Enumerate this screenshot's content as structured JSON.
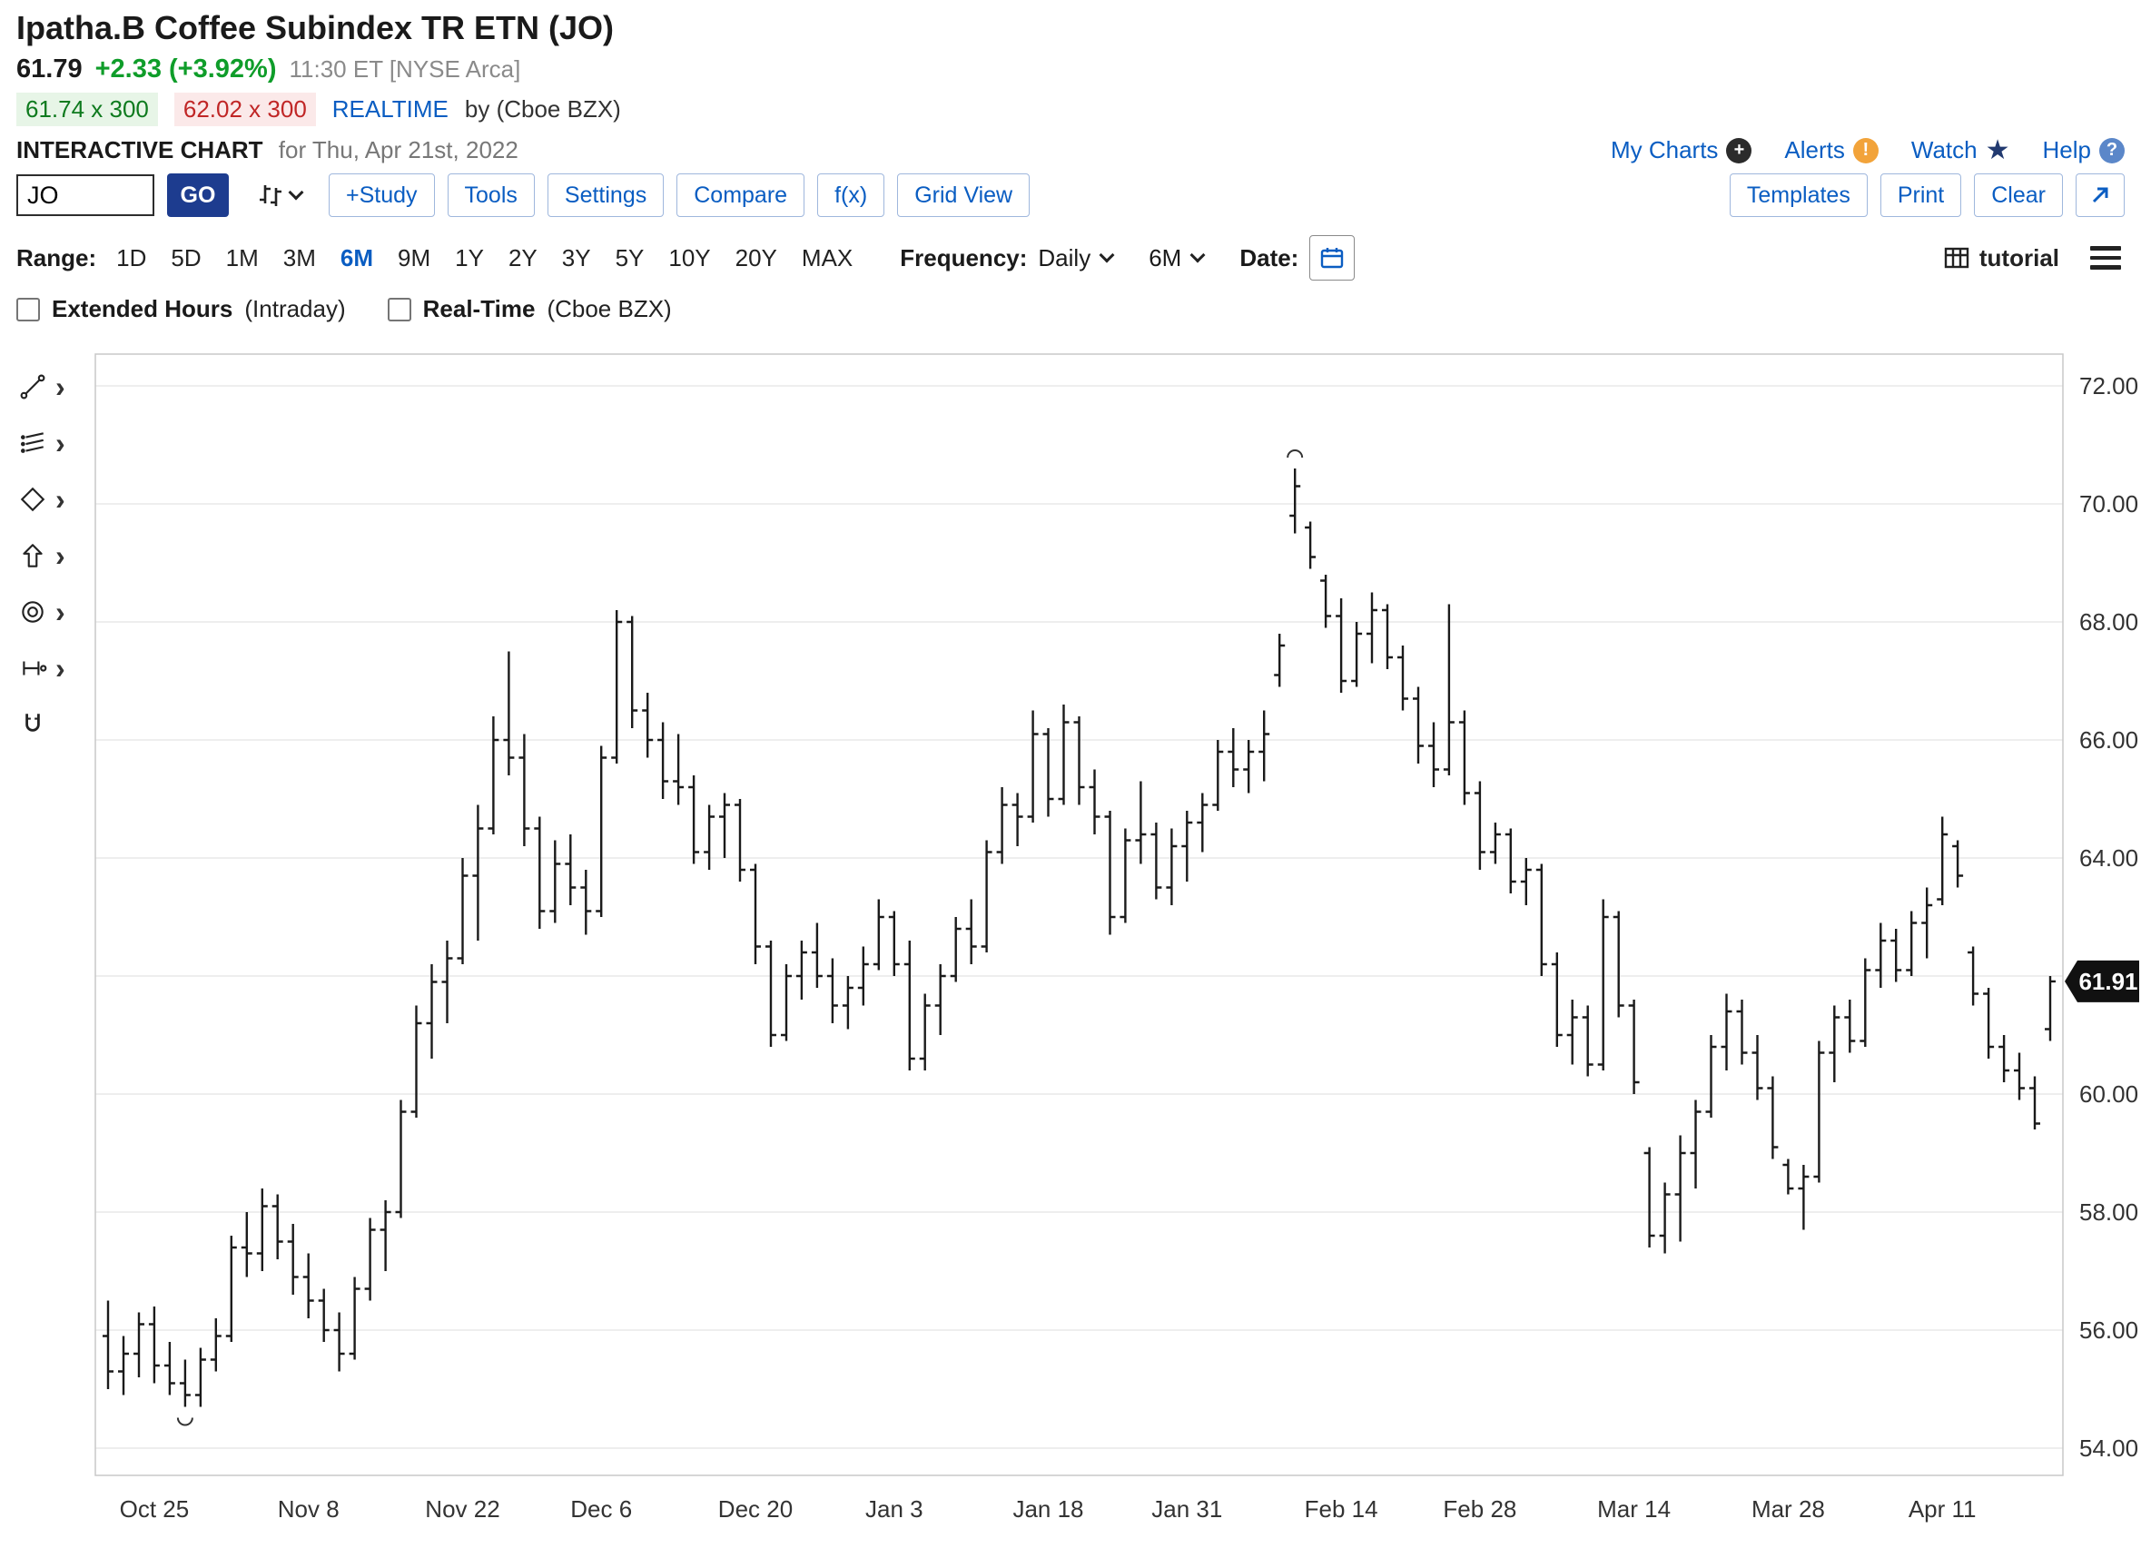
{
  "header": {
    "title": "Ipatha.B Coffee Subindex TR ETN (JO)",
    "price": "61.79",
    "change": "+2.33 (+3.92%)",
    "time": "11:30 ET [NYSE Arca]",
    "bid": "61.74 x 300",
    "ask": "62.02 x 300",
    "realtime_label": "REALTIME",
    "realtime_by": "by (Cboe BZX)",
    "chart_label": "INTERACTIVE CHART",
    "chart_date": "for Thu, Apr 21st, 2022",
    "links": {
      "my_charts": "My Charts",
      "alerts": "Alerts",
      "watch": "Watch",
      "help": "Help"
    }
  },
  "toolbar": {
    "symbol_value": "JO",
    "go_label": "GO",
    "buttons": [
      "+Study",
      "Tools",
      "Settings",
      "Compare",
      "f(x)",
      "Grid View"
    ],
    "right_buttons": [
      "Templates",
      "Print",
      "Clear"
    ]
  },
  "range_bar": {
    "range_label": "Range:",
    "ranges": [
      "1D",
      "5D",
      "1M",
      "3M",
      "6M",
      "9M",
      "1Y",
      "2Y",
      "3Y",
      "5Y",
      "10Y",
      "20Y",
      "MAX"
    ],
    "selected_range": "6M",
    "frequency_label": "Frequency:",
    "frequency_value": "Daily",
    "period_value": "6M",
    "date_label": "Date:",
    "tutorial_label": "tutorial"
  },
  "options": {
    "extended_hours": "Extended Hours",
    "extended_hours_suffix": "(Intraday)",
    "realtime": "Real-Time",
    "realtime_suffix": "(Cboe BZX)"
  },
  "icons": {
    "drawing_tools": [
      "line-tool",
      "multiline-tool",
      "polygon-tool",
      "arrow-tool",
      "ellipse-tool",
      "measure-tool",
      "magnet-tool"
    ]
  },
  "colors": {
    "accent_blue": "#0a5dc2",
    "positive_green": "#0f9d2a",
    "bid_green_bg": "#e7f5e7",
    "bid_green_text": "#0e7a1e",
    "ask_red_bg": "#fbe9e9",
    "ask_red_text": "#c02626",
    "go_button_bg": "#1d3c8f",
    "alert_orange": "#f2a33a",
    "price_tag_bg": "#111111",
    "bar_color": "#1a1a1a"
  },
  "chart_data": {
    "type": "ohlc-bar",
    "title": "Ipatha.B Coffee Subindex TR ETN (JO) Daily",
    "ylim": [
      54,
      72
    ],
    "y_ticks": [
      72,
      70,
      68,
      66,
      64,
      62,
      60,
      58,
      56,
      54
    ],
    "last_price": "61.91",
    "grid": true,
    "x_ticks": [
      {
        "label": "Oct 25",
        "i": 3
      },
      {
        "label": "Nov 8",
        "i": 13
      },
      {
        "label": "Nov 22",
        "i": 23
      },
      {
        "label": "Dec 6",
        "i": 32
      },
      {
        "label": "Dec 20",
        "i": 42
      },
      {
        "label": "Jan 3",
        "i": 51
      },
      {
        "label": "Jan 18",
        "i": 61
      },
      {
        "label": "Jan 31",
        "i": 70
      },
      {
        "label": "Feb 14",
        "i": 80
      },
      {
        "label": "Feb 28",
        "i": 89
      },
      {
        "label": "Mar 14",
        "i": 99
      },
      {
        "label": "Mar 28",
        "i": 109
      },
      {
        "label": "Apr 11",
        "i": 119
      }
    ],
    "annotations": [
      {
        "i": 5,
        "position": "below"
      },
      {
        "i": 77,
        "position": "above"
      }
    ],
    "bars": [
      [
        "Oct 20",
        55.9,
        56.5,
        55.0,
        55.3
      ],
      [
        "Oct 21",
        55.3,
        55.9,
        54.9,
        55.6
      ],
      [
        "Oct 22",
        55.6,
        56.3,
        55.2,
        56.1
      ],
      [
        "Oct 25",
        56.1,
        56.4,
        55.1,
        55.4
      ],
      [
        "Oct 26",
        55.4,
        55.8,
        54.9,
        55.1
      ],
      [
        "Oct 27",
        55.1,
        55.5,
        54.7,
        54.9
      ],
      [
        "Oct 28",
        54.9,
        55.7,
        54.7,
        55.5
      ],
      [
        "Oct 29",
        55.5,
        56.2,
        55.3,
        55.9
      ],
      [
        "Nov 1",
        55.9,
        57.6,
        55.8,
        57.4
      ],
      [
        "Nov 2",
        57.4,
        58.0,
        56.9,
        57.3
      ],
      [
        "Nov 3",
        57.3,
        58.4,
        57.0,
        58.1
      ],
      [
        "Nov 4",
        58.1,
        58.3,
        57.2,
        57.5
      ],
      [
        "Nov 5",
        57.5,
        57.8,
        56.6,
        56.9
      ],
      [
        "Nov 8",
        56.9,
        57.3,
        56.2,
        56.5
      ],
      [
        "Nov 9",
        56.5,
        56.7,
        55.8,
        56.0
      ],
      [
        "Nov 10",
        56.0,
        56.3,
        55.3,
        55.6
      ],
      [
        "Nov 11",
        55.6,
        56.9,
        55.5,
        56.7
      ],
      [
        "Nov 12",
        56.7,
        57.9,
        56.5,
        57.7
      ],
      [
        "Nov 15",
        57.7,
        58.2,
        57.0,
        58.0
      ],
      [
        "Nov 16",
        58.0,
        59.9,
        57.9,
        59.7
      ],
      [
        "Nov 17",
        59.7,
        61.5,
        59.6,
        61.2
      ],
      [
        "Nov 18",
        61.2,
        62.2,
        60.6,
        61.9
      ],
      [
        "Nov 19",
        61.9,
        62.6,
        61.2,
        62.3
      ],
      [
        "Nov 22",
        62.3,
        64.0,
        62.2,
        63.7
      ],
      [
        "Nov 23",
        63.7,
        64.9,
        62.6,
        64.5
      ],
      [
        "Nov 24",
        64.5,
        66.4,
        64.4,
        66.0
      ],
      [
        "Nov 26",
        66.0,
        67.5,
        65.4,
        65.7
      ],
      [
        "Nov 29",
        65.7,
        66.1,
        64.2,
        64.5
      ],
      [
        "Nov 30",
        64.5,
        64.7,
        62.8,
        63.1
      ],
      [
        "Dec 1",
        63.1,
        64.3,
        62.9,
        63.9
      ],
      [
        "Dec 2",
        63.9,
        64.4,
        63.2,
        63.5
      ],
      [
        "Dec 3",
        63.5,
        63.8,
        62.7,
        63.1
      ],
      [
        "Dec 6",
        63.1,
        65.9,
        63.0,
        65.7
      ],
      [
        "Dec 7",
        65.7,
        68.2,
        65.6,
        68.0
      ],
      [
        "Dec 8",
        68.0,
        68.1,
        66.2,
        66.5
      ],
      [
        "Dec 9",
        66.5,
        66.8,
        65.7,
        66.0
      ],
      [
        "Dec 10",
        66.0,
        66.3,
        65.0,
        65.3
      ],
      [
        "Dec 13",
        65.3,
        66.1,
        64.9,
        65.2
      ],
      [
        "Dec 14",
        65.2,
        65.4,
        63.9,
        64.1
      ],
      [
        "Dec 15",
        64.1,
        64.9,
        63.8,
        64.7
      ],
      [
        "Dec 16",
        64.7,
        65.1,
        64.0,
        64.9
      ],
      [
        "Dec 17",
        64.9,
        65.0,
        63.6,
        63.8
      ],
      [
        "Dec 20",
        63.8,
        63.9,
        62.2,
        62.5
      ],
      [
        "Dec 21",
        62.5,
        62.6,
        60.8,
        61.0
      ],
      [
        "Dec 22",
        61.0,
        62.2,
        60.9,
        62.0
      ],
      [
        "Dec 23",
        62.0,
        62.6,
        61.6,
        62.4
      ],
      [
        "Dec 27",
        62.4,
        62.9,
        61.8,
        62.0
      ],
      [
        "Dec 28",
        62.0,
        62.3,
        61.2,
        61.5
      ],
      [
        "Dec 29",
        61.5,
        62.0,
        61.1,
        61.8
      ],
      [
        "Dec 30",
        61.8,
        62.5,
        61.5,
        62.2
      ],
      [
        "Dec 31",
        62.2,
        63.3,
        62.1,
        63.0
      ],
      [
        "Jan 3",
        63.0,
        63.1,
        62.0,
        62.2
      ],
      [
        "Jan 4",
        62.2,
        62.6,
        60.4,
        60.6
      ],
      [
        "Jan 5",
        60.6,
        61.7,
        60.4,
        61.5
      ],
      [
        "Jan 6",
        61.5,
        62.2,
        61.0,
        62.0
      ],
      [
        "Jan 7",
        62.0,
        63.0,
        61.9,
        62.8
      ],
      [
        "Jan 10",
        62.8,
        63.3,
        62.2,
        62.5
      ],
      [
        "Jan 11",
        62.5,
        64.3,
        62.4,
        64.1
      ],
      [
        "Jan 12",
        64.1,
        65.2,
        63.9,
        64.9
      ],
      [
        "Jan 13",
        64.9,
        65.1,
        64.2,
        64.7
      ],
      [
        "Jan 14",
        64.7,
        66.5,
        64.6,
        66.1
      ],
      [
        "Jan 18",
        66.1,
        66.2,
        64.7,
        65.0
      ],
      [
        "Jan 19",
        65.0,
        66.6,
        64.9,
        66.3
      ],
      [
        "Jan 20",
        66.3,
        66.4,
        64.9,
        65.2
      ],
      [
        "Jan 21",
        65.2,
        65.5,
        64.4,
        64.7
      ],
      [
        "Jan 24",
        64.7,
        64.8,
        62.7,
        63.0
      ],
      [
        "Jan 25",
        63.0,
        64.5,
        62.9,
        64.3
      ],
      [
        "Jan 26",
        64.3,
        65.3,
        63.9,
        64.4
      ],
      [
        "Jan 27",
        64.4,
        64.6,
        63.3,
        63.5
      ],
      [
        "Jan 28",
        63.5,
        64.5,
        63.2,
        64.2
      ],
      [
        "Jan 31",
        64.2,
        64.8,
        63.6,
        64.6
      ],
      [
        "Feb 1",
        64.6,
        65.1,
        64.1,
        64.9
      ],
      [
        "Feb 2",
        64.9,
        66.0,
        64.8,
        65.8
      ],
      [
        "Feb 3",
        65.8,
        66.2,
        65.2,
        65.5
      ],
      [
        "Feb 4",
        65.5,
        66.0,
        65.1,
        65.8
      ],
      [
        "Feb 7",
        65.8,
        66.5,
        65.3,
        66.1
      ],
      [
        "Feb 8",
        67.1,
        67.8,
        66.9,
        67.6
      ],
      [
        "Feb 9",
        69.8,
        70.6,
        69.5,
        70.3
      ],
      [
        "Feb 10",
        69.6,
        69.7,
        68.9,
        69.1
      ],
      [
        "Feb 11",
        68.7,
        68.8,
        67.9,
        68.1
      ],
      [
        "Feb 14",
        68.1,
        68.4,
        66.8,
        67.0
      ],
      [
        "Feb 15",
        67.0,
        68.0,
        66.9,
        67.8
      ],
      [
        "Feb 16",
        67.8,
        68.5,
        67.3,
        68.2
      ],
      [
        "Feb 17",
        68.2,
        68.3,
        67.2,
        67.4
      ],
      [
        "Feb 18",
        67.4,
        67.6,
        66.5,
        66.7
      ],
      [
        "Feb 22",
        66.7,
        66.9,
        65.6,
        65.9
      ],
      [
        "Feb 23",
        65.9,
        66.3,
        65.2,
        65.5
      ],
      [
        "Feb 24",
        65.5,
        68.3,
        65.4,
        66.3
      ],
      [
        "Feb 25",
        66.3,
        66.5,
        64.9,
        65.1
      ],
      [
        "Feb 28",
        65.1,
        65.3,
        63.8,
        64.1
      ],
      [
        "Mar 1",
        64.1,
        64.6,
        63.9,
        64.4
      ],
      [
        "Mar 2",
        64.4,
        64.5,
        63.4,
        63.6
      ],
      [
        "Mar 3",
        63.6,
        64.0,
        63.2,
        63.8
      ],
      [
        "Mar 4",
        63.8,
        63.9,
        62.0,
        62.2
      ],
      [
        "Mar 7",
        62.2,
        62.4,
        60.8,
        61.0
      ],
      [
        "Mar 8",
        61.0,
        61.6,
        60.5,
        61.3
      ],
      [
        "Mar 9",
        61.3,
        61.5,
        60.3,
        60.5
      ],
      [
        "Mar 10",
        60.5,
        63.3,
        60.4,
        63.0
      ],
      [
        "Mar 11",
        63.0,
        63.1,
        61.3,
        61.5
      ],
      [
        "Mar 14",
        61.5,
        61.6,
        60.0,
        60.2
      ],
      [
        "Mar 15",
        59.0,
        59.1,
        57.4,
        57.6
      ],
      [
        "Mar 16",
        57.6,
        58.5,
        57.3,
        58.3
      ],
      [
        "Mar 17",
        58.3,
        59.3,
        57.5,
        59.0
      ],
      [
        "Mar 18",
        59.0,
        59.9,
        58.4,
        59.7
      ],
      [
        "Mar 21",
        59.7,
        61.0,
        59.6,
        60.8
      ],
      [
        "Mar 22",
        60.8,
        61.7,
        60.4,
        61.4
      ],
      [
        "Mar 23",
        61.4,
        61.6,
        60.5,
        60.7
      ],
      [
        "Mar 24",
        60.7,
        61.0,
        59.9,
        60.1
      ],
      [
        "Mar 25",
        60.1,
        60.3,
        58.9,
        59.1
      ],
      [
        "Mar 28",
        58.8,
        58.9,
        58.3,
        58.4
      ],
      [
        "Mar 29",
        58.4,
        58.8,
        57.7,
        58.6
      ],
      [
        "Mar 30",
        58.6,
        60.9,
        58.5,
        60.7
      ],
      [
        "Mar 31",
        60.7,
        61.5,
        60.2,
        61.3
      ],
      [
        "Apr 1",
        61.3,
        61.6,
        60.7,
        60.9
      ],
      [
        "Apr 4",
        60.9,
        62.3,
        60.8,
        62.1
      ],
      [
        "Apr 5",
        62.1,
        62.9,
        61.8,
        62.6
      ],
      [
        "Apr 6",
        62.6,
        62.8,
        61.9,
        62.1
      ],
      [
        "Apr 7",
        62.1,
        63.1,
        62.0,
        62.9
      ],
      [
        "Apr 8",
        62.9,
        63.5,
        62.3,
        63.2
      ],
      [
        "Apr 11",
        63.3,
        64.7,
        63.2,
        64.4
      ],
      [
        "Apr 12",
        64.2,
        64.3,
        63.5,
        63.7
      ],
      [
        "Apr 13",
        62.4,
        62.5,
        61.5,
        61.7
      ],
      [
        "Apr 14",
        61.7,
        61.8,
        60.6,
        60.8
      ],
      [
        "Apr 18",
        60.8,
        61.0,
        60.2,
        60.4
      ],
      [
        "Apr 19",
        60.4,
        60.7,
        59.9,
        60.1
      ],
      [
        "Apr 20",
        60.1,
        60.3,
        59.4,
        59.5
      ],
      [
        "Apr 21",
        61.1,
        62.0,
        60.9,
        61.91
      ]
    ]
  }
}
